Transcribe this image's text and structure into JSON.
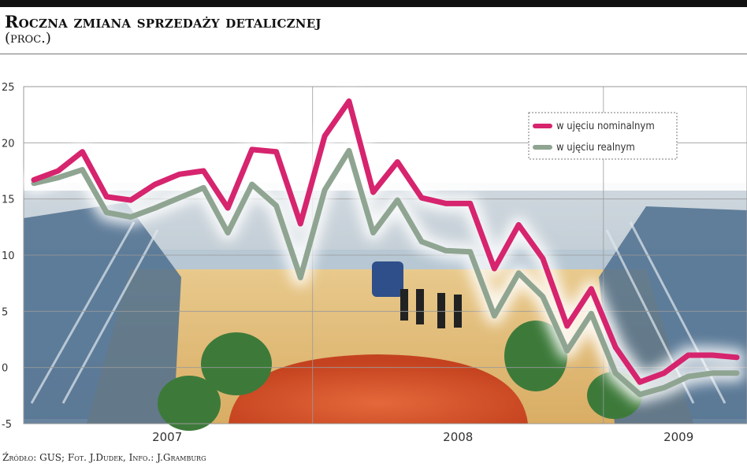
{
  "header": {
    "title": "Roczna zmiana sprzedaży detalicznej",
    "subtitle": "(proc.)"
  },
  "footer": {
    "source": "Źródło: GUS; Fot. J.Dudek, Info.: J.Gramburg"
  },
  "colors": {
    "nominal": "#d6246e",
    "real": "#8fa592",
    "accent_bar": "#111111"
  },
  "chart_data": {
    "type": "line",
    "title": "Roczna zmiana sprzedaży detalicznej",
    "ylabel": "(proc.)",
    "ylim": [
      -5,
      25
    ],
    "yticks": [
      "25",
      "20",
      "15",
      "10",
      "5",
      "0",
      "-5"
    ],
    "grid": true,
    "legend_position": "top-right",
    "x_groups": [
      "2007",
      "2008",
      "2009"
    ],
    "x": [
      "2007-01",
      "2007-02",
      "2007-03",
      "2007-04",
      "2007-05",
      "2007-06",
      "2007-07",
      "2007-08",
      "2007-09",
      "2007-10",
      "2007-11",
      "2007-12",
      "2008-01",
      "2008-02",
      "2008-03",
      "2008-04",
      "2008-05",
      "2008-06",
      "2008-07",
      "2008-08",
      "2008-09",
      "2008-10",
      "2008-11",
      "2008-12",
      "2009-01",
      "2009-02",
      "2009-03",
      "2009-04",
      "2009-05",
      "2009-06"
    ],
    "series": [
      {
        "name": "w ujęciu nominalnym",
        "values": [
          16.7,
          17.5,
          19.2,
          15.2,
          14.9,
          16.3,
          17.2,
          17.5,
          14.2,
          19.4,
          19.2,
          12.8,
          20.6,
          23.7,
          15.6,
          18.3,
          15.1,
          14.6,
          14.6,
          8.8,
          12.7,
          9.7,
          3.7,
          7.0,
          1.8,
          -1.3,
          -0.5,
          1.1,
          1.1,
          0.9
        ]
      },
      {
        "name": "w ujęciu realnym",
        "values": [
          16.4,
          16.9,
          17.6,
          13.8,
          13.4,
          14.2,
          15.1,
          16.0,
          12.0,
          16.3,
          14.4,
          8.0,
          15.8,
          19.3,
          12.0,
          14.9,
          11.2,
          10.4,
          10.3,
          4.6,
          8.4,
          6.3,
          1.5,
          4.8,
          -0.5,
          -2.4,
          -1.8,
          -0.8,
          -0.5,
          -0.5
        ]
      }
    ]
  }
}
